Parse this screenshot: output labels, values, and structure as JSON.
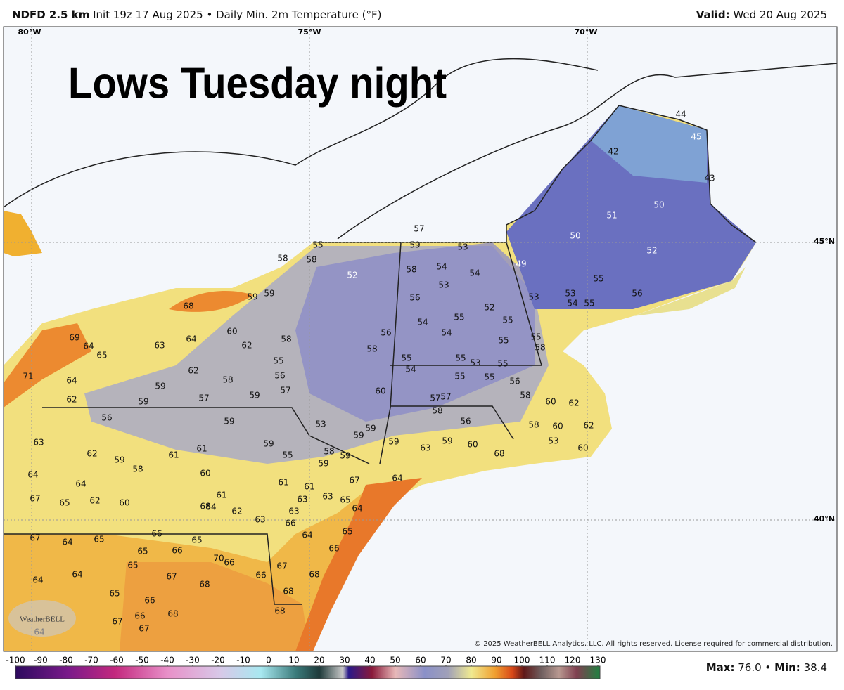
{
  "header": {
    "model": "NDFD 2.5 km",
    "init": "Init 19z 17 Aug 2025",
    "separator": "•",
    "field": "Daily Min. 2m Temperature (°F)",
    "valid_label": "Valid:",
    "valid_date": "Wed 20 Aug 2025"
  },
  "overlay_title": "Lows Tuesday night",
  "graticule": {
    "lon": [
      "80°W",
      "75°W",
      "70°W"
    ],
    "lat": [
      "45°N",
      "40°N"
    ]
  },
  "map": {
    "labels": [
      57,
      59,
      55,
      53,
      58,
      58,
      52,
      58,
      54,
      54,
      53,
      49,
      59,
      59,
      68,
      56,
      54,
      54,
      55,
      52,
      53,
      55,
      55,
      55,
      58,
      60,
      64,
      63,
      62,
      58,
      56,
      58,
      69,
      64,
      65,
      71,
      64,
      59,
      62,
      58,
      55,
      56,
      57,
      55,
      54,
      55,
      53,
      55,
      55,
      55,
      56,
      58,
      57,
      57,
      60,
      62,
      59,
      57,
      59,
      58,
      56,
      60,
      62,
      56,
      59,
      53,
      59,
      59,
      58,
      60,
      62,
      63,
      62,
      61,
      61,
      59,
      55,
      58,
      59,
      59,
      59,
      63,
      59,
      60,
      68,
      53,
      60,
      64,
      59,
      58,
      60,
      64,
      61,
      61,
      67,
      64,
      67,
      65,
      62,
      60,
      61,
      68,
      64,
      62,
      63,
      63,
      65,
      64,
      63,
      63,
      66,
      67,
      64,
      65,
      66,
      65,
      65,
      66,
      64,
      66,
      65,
      64,
      64,
      65,
      70,
      66,
      67,
      68,
      65,
      66,
      67,
      66,
      68,
      68,
      67,
      66,
      68,
      67,
      68,
      64,
      44,
      45,
      42,
      43,
      50,
      51,
      50,
      52,
      55,
      56,
      53,
      54,
      55
    ]
  },
  "watermark": "WeatherBELL",
  "copyright": "© 2025 WeatherBELL Analytics, LLC. All rights reserved. License required for commercial distribution.",
  "colorbar": {
    "ticks": [
      -100,
      -90,
      -80,
      -70,
      -60,
      -50,
      -40,
      -30,
      -20,
      -10,
      0,
      10,
      20,
      30,
      40,
      50,
      60,
      70,
      80,
      90,
      100,
      110,
      120,
      130
    ]
  },
  "footer": {
    "max_label": "Max:",
    "max": "76.0",
    "separator": "•",
    "min_label": "Min:",
    "min": "38.4"
  }
}
